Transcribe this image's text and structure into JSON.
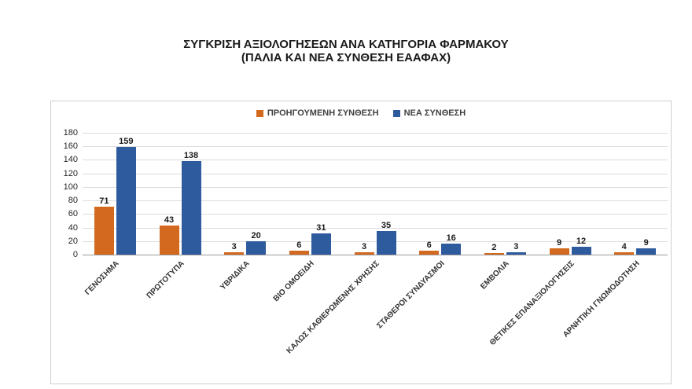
{
  "title": {
    "line1": "ΣΥΓΚΡΙΣΗ ΑΞΙΟΛΟΓΗΣΕΩΝ ΑΝΑ ΚΑΤΗΓΟΡΙΑ ΦΑΡΜΑΚΟΥ",
    "line2": "(ΠΑΛΙΑ ΚΑΙ ΝΕΑ ΣΥΝΘΕΣΗ ΕΑΑΦΑΧ)"
  },
  "chart_data": {
    "type": "bar",
    "title": "ΣΥΓΚΡΙΣΗ ΑΞΙΟΛΟΓΗΣΕΩΝ ΑΝΑ ΚΑΤΗΓΟΡΙΑ ΦΑΡΜΑΚΟΥ (ΠΑΛΙΑ ΚΑΙ ΝΕΑ ΣΥΝΘΕΣΗ ΕΑΑΦΑΧ)",
    "categories": [
      "ΓΕΝΟΣΗΜΑ",
      "ΠΡΩΤΟΤΥΠΑ",
      "ΥΒΡΙΔΙΚΑ",
      "ΒΙΟ ΟΜΟΕΙΔΗ",
      "ΚΑΛΩΣ ΚΑΘΙΕΡΩΜΕΝΗΣ ΧΡΗΣΗΣ",
      "ΣΤΑΘΕΡΟΙ ΣΥΝΔΥΑΣΜΟΙ",
      "ΕΜΒΟΛΙΑ",
      "ΘΕΤΙΚΕΣ ΕΠΑΝΑΞΙΟΛΟΓΗΣΕΙΣ",
      "ΑΡΝΗΤΙΚΗ ΓΝΩΜΟΔΟΤΗΣΗ"
    ],
    "series": [
      {
        "name": "ΠΡΟΗΓΟΥΜΕΝΗ ΣΥΝΘΕΣΗ",
        "color": "#d2691e",
        "values": [
          71,
          43,
          3,
          6,
          3,
          6,
          2,
          9,
          4
        ]
      },
      {
        "name": "ΝΕΑ ΣΥΝΘΕΣΗ",
        "color": "#2e5b9e",
        "values": [
          159,
          138,
          20,
          31,
          35,
          16,
          3,
          12,
          9
        ]
      }
    ],
    "ylim": [
      0,
      180
    ],
    "ytick_step": 20,
    "yticks": [
      0,
      20,
      40,
      60,
      80,
      100,
      120,
      140,
      160,
      180
    ],
    "grid": true,
    "legend_position": "top",
    "value_labels": true
  }
}
